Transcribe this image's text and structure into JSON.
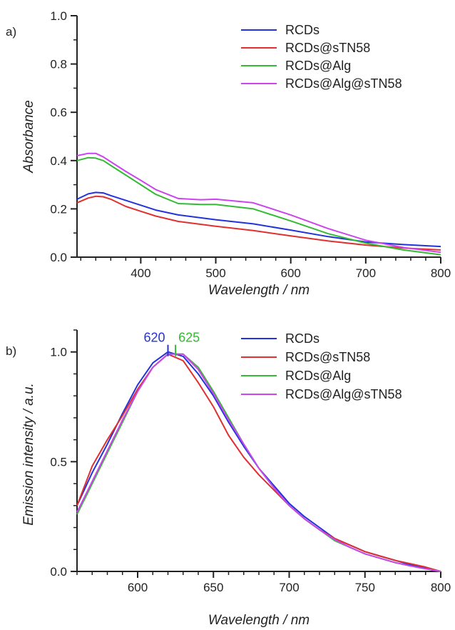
{
  "chart_data": [
    {
      "type": "line",
      "panel_label": "a)",
      "title": "",
      "xlabel": "Wavelength / nm",
      "ylabel": "Absorbance",
      "xlim": [
        315,
        800
      ],
      "ylim": [
        0,
        1.0
      ],
      "xticks": [
        "400",
        "500",
        "600",
        "700",
        "800"
      ],
      "yticks": [
        "0.0",
        "0.2",
        "0.4",
        "0.6",
        "0.8",
        "1.0"
      ],
      "legend_position": "top-right",
      "grid": false,
      "series": [
        {
          "name": "RCDs",
          "color": "#2233dd",
          "x": [
            315,
            330,
            340,
            350,
            360,
            380,
            400,
            420,
            450,
            500,
            550,
            600,
            650,
            700,
            750,
            800
          ],
          "y": [
            0.24,
            0.262,
            0.268,
            0.266,
            0.255,
            0.235,
            0.215,
            0.195,
            0.175,
            0.155,
            0.138,
            0.112,
            0.085,
            0.063,
            0.052,
            0.044
          ]
        },
        {
          "name": "RCDs@sTN58",
          "color": "#e03030",
          "x": [
            315,
            330,
            340,
            350,
            360,
            380,
            400,
            420,
            450,
            500,
            550,
            600,
            650,
            700,
            750,
            800
          ],
          "y": [
            0.225,
            0.245,
            0.252,
            0.25,
            0.24,
            0.21,
            0.19,
            0.17,
            0.148,
            0.128,
            0.11,
            0.088,
            0.067,
            0.05,
            0.038,
            0.03
          ]
        },
        {
          "name": "RCDs@Alg",
          "color": "#33bb33",
          "x": [
            315,
            330,
            340,
            350,
            360,
            380,
            400,
            420,
            450,
            480,
            500,
            550,
            600,
            650,
            700,
            750,
            800
          ],
          "y": [
            0.4,
            0.412,
            0.41,
            0.4,
            0.38,
            0.34,
            0.3,
            0.26,
            0.222,
            0.218,
            0.218,
            0.2,
            0.15,
            0.097,
            0.058,
            0.03,
            0.01
          ]
        },
        {
          "name": "RCDs@Alg@sTN58",
          "color": "#cc44ee",
          "x": [
            315,
            330,
            340,
            350,
            360,
            380,
            400,
            420,
            450,
            480,
            500,
            550,
            600,
            650,
            700,
            750,
            800
          ],
          "y": [
            0.42,
            0.43,
            0.43,
            0.415,
            0.395,
            0.355,
            0.318,
            0.28,
            0.243,
            0.238,
            0.24,
            0.225,
            0.175,
            0.118,
            0.07,
            0.04,
            0.02
          ]
        }
      ]
    },
    {
      "type": "line",
      "panel_label": "b)",
      "title": "",
      "xlabel": "Wavelength / nm",
      "ylabel": "Emission intensity / a.u.",
      "xlim": [
        560,
        800
      ],
      "ylim": [
        0,
        1.1
      ],
      "xticks": [
        "600",
        "650",
        "700",
        "750",
        "800"
      ],
      "yticks": [
        "0.0",
        "0.5",
        "1.0"
      ],
      "legend_position": "top-right",
      "grid": false,
      "annotations": [
        {
          "text": "620",
          "x": 620,
          "y": 1.0,
          "color": "#2233dd"
        },
        {
          "text": "625",
          "x": 625,
          "y": 1.0,
          "color": "#33bb33"
        }
      ],
      "series": [
        {
          "name": "RCDs",
          "color": "#2233dd",
          "x": [
            560,
            570,
            580,
            590,
            600,
            610,
            620,
            630,
            640,
            650,
            660,
            670,
            680,
            690,
            700,
            710,
            720,
            730,
            740,
            750,
            760,
            770,
            780,
            790,
            800
          ],
          "y": [
            0.3,
            0.45,
            0.58,
            0.72,
            0.85,
            0.95,
            1.0,
            0.98,
            0.9,
            0.8,
            0.68,
            0.57,
            0.47,
            0.39,
            0.31,
            0.25,
            0.2,
            0.15,
            0.12,
            0.09,
            0.07,
            0.05,
            0.03,
            0.015,
            0.0
          ]
        },
        {
          "name": "RCDs@sTN58",
          "color": "#e03030",
          "x": [
            560,
            570,
            580,
            590,
            600,
            610,
            620,
            630,
            640,
            650,
            660,
            670,
            680,
            690,
            700,
            710,
            720,
            730,
            740,
            750,
            760,
            770,
            780,
            790,
            800
          ],
          "y": [
            0.3,
            0.48,
            0.6,
            0.71,
            0.83,
            0.93,
            0.99,
            0.96,
            0.86,
            0.75,
            0.62,
            0.52,
            0.44,
            0.37,
            0.3,
            0.24,
            0.19,
            0.15,
            0.12,
            0.09,
            0.07,
            0.05,
            0.035,
            0.02,
            0.0
          ]
        },
        {
          "name": "RCDs@Alg",
          "color": "#33bb33",
          "x": [
            560,
            570,
            580,
            590,
            600,
            610,
            620,
            630,
            640,
            650,
            660,
            670,
            680,
            690,
            700,
            710,
            720,
            730,
            740,
            750,
            760,
            770,
            780,
            790,
            800
          ],
          "y": [
            0.26,
            0.4,
            0.54,
            0.68,
            0.82,
            0.93,
            0.99,
            0.99,
            0.93,
            0.82,
            0.7,
            0.58,
            0.47,
            0.38,
            0.3,
            0.24,
            0.19,
            0.14,
            0.11,
            0.08,
            0.06,
            0.04,
            0.025,
            0.012,
            0.0
          ]
        },
        {
          "name": "RCDs@Alg@sTN58",
          "color": "#cc44ee",
          "x": [
            560,
            570,
            580,
            590,
            600,
            610,
            620,
            630,
            640,
            650,
            660,
            670,
            680,
            690,
            700,
            710,
            720,
            730,
            740,
            750,
            760,
            770,
            780,
            790,
            800
          ],
          "y": [
            0.27,
            0.41,
            0.55,
            0.69,
            0.82,
            0.93,
            0.99,
            0.99,
            0.92,
            0.81,
            0.69,
            0.58,
            0.47,
            0.38,
            0.3,
            0.24,
            0.19,
            0.145,
            0.11,
            0.08,
            0.06,
            0.04,
            0.025,
            0.012,
            0.0
          ]
        }
      ]
    }
  ]
}
